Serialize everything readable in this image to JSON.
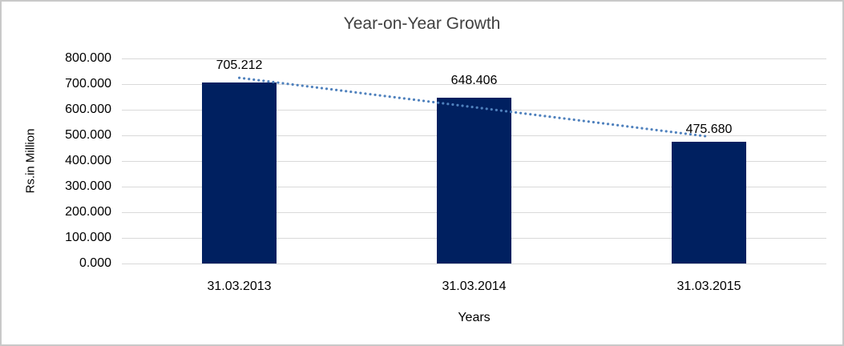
{
  "chart_data": {
    "type": "bar",
    "title": "Year-on-Year Growth",
    "categories": [
      "31.03.2013",
      "31.03.2014",
      "31.03.2015"
    ],
    "values": [
      705.212,
      648.406,
      475.68
    ],
    "data_labels": [
      "705.212",
      "648.406",
      "475.680"
    ],
    "xlabel": "Years",
    "ylabel": "Rs.in Million",
    "ylim": [
      0,
      800
    ],
    "ytick_step": 100,
    "ytick_labels": [
      "0.000",
      "100.000",
      "200.000",
      "300.000",
      "400.000",
      "500.000",
      "600.000",
      "700.000",
      "800.000"
    ],
    "grid": "horizontal-gridlines",
    "legend": "none",
    "trendline": {
      "type": "linear",
      "style": "dotted",
      "color": "#4f81bd"
    },
    "colors": {
      "bar": "#002060",
      "gridline": "#d9d9d9",
      "title_text": "#404040",
      "axis_text": "#000000",
      "canvas_border": "#c9c9c9"
    }
  }
}
